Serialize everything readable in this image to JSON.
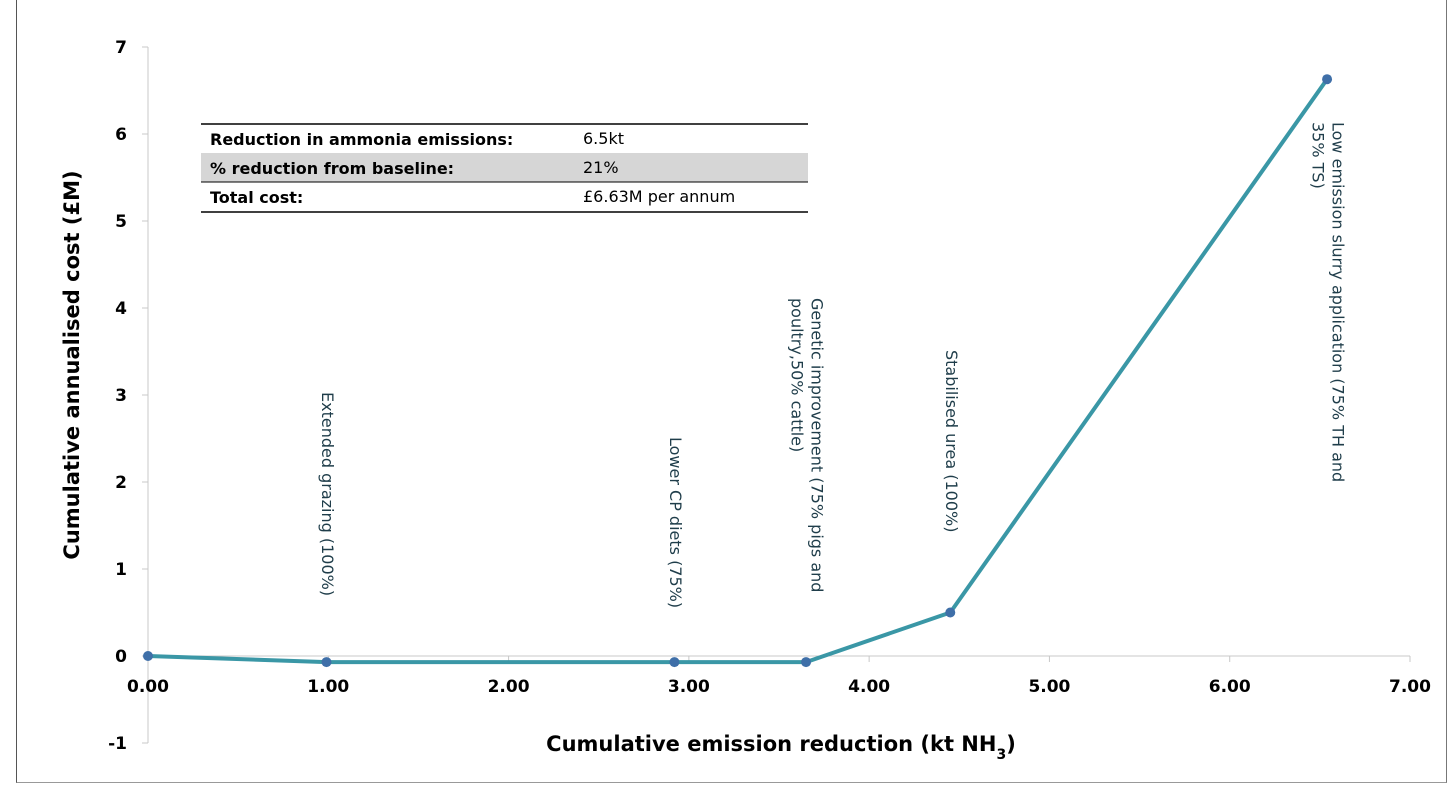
{
  "chart_data": {
    "type": "line",
    "xlabel": "Cumulative emission reduction (kt NH",
    "xlabel_subscript": "3",
    "xlabel_suffix": ")",
    "ylabel": "Cumulative annualised cost (£M)",
    "xlim": [
      0,
      7
    ],
    "ylim": [
      -1,
      7
    ],
    "x_ticks": [
      "0.00",
      "1.00",
      "2.00",
      "3.00",
      "4.00",
      "5.00",
      "6.00",
      "7.00"
    ],
    "y_ticks": [
      "-1",
      "0",
      "1",
      "2",
      "3",
      "4",
      "5",
      "6",
      "7"
    ],
    "grid": false,
    "series": [
      {
        "color": "#3a97a6",
        "marker_color": "#3f6fa8",
        "points": [
          {
            "x": 0.0,
            "y": 0.0
          },
          {
            "x": 0.99,
            "y": -0.07
          },
          {
            "x": 2.92,
            "y": -0.07
          },
          {
            "x": 3.65,
            "y": -0.07
          },
          {
            "x": 4.45,
            "y": 0.5
          },
          {
            "x": 6.54,
            "y": 6.63
          }
        ]
      }
    ],
    "annotations": [
      {
        "lines": [
          "Extended grazing (100%)"
        ],
        "x": 0.99
      },
      {
        "lines": [
          "Lower CP diets (75%)"
        ],
        "x": 2.92
      },
      {
        "lines": [
          "Genetic improvement (75% pigs and",
          "poultry,50% cattle)"
        ],
        "x": 3.65
      },
      {
        "lines": [
          "Stabilised urea (100%)"
        ],
        "x": 4.45
      },
      {
        "lines": [
          "Low emission slurry application (75% TH and",
          "35% TS)"
        ],
        "x": 6.54
      }
    ]
  },
  "summary_table": {
    "rows": [
      {
        "label": "Reduction in ammonia emissions:",
        "value": "6.5kt",
        "shaded": false
      },
      {
        "label": "% reduction from baseline:",
        "value": "21%",
        "shaded": true
      },
      {
        "label": "Total cost:",
        "value": "£6.63M per annum",
        "shaded": false
      }
    ]
  }
}
